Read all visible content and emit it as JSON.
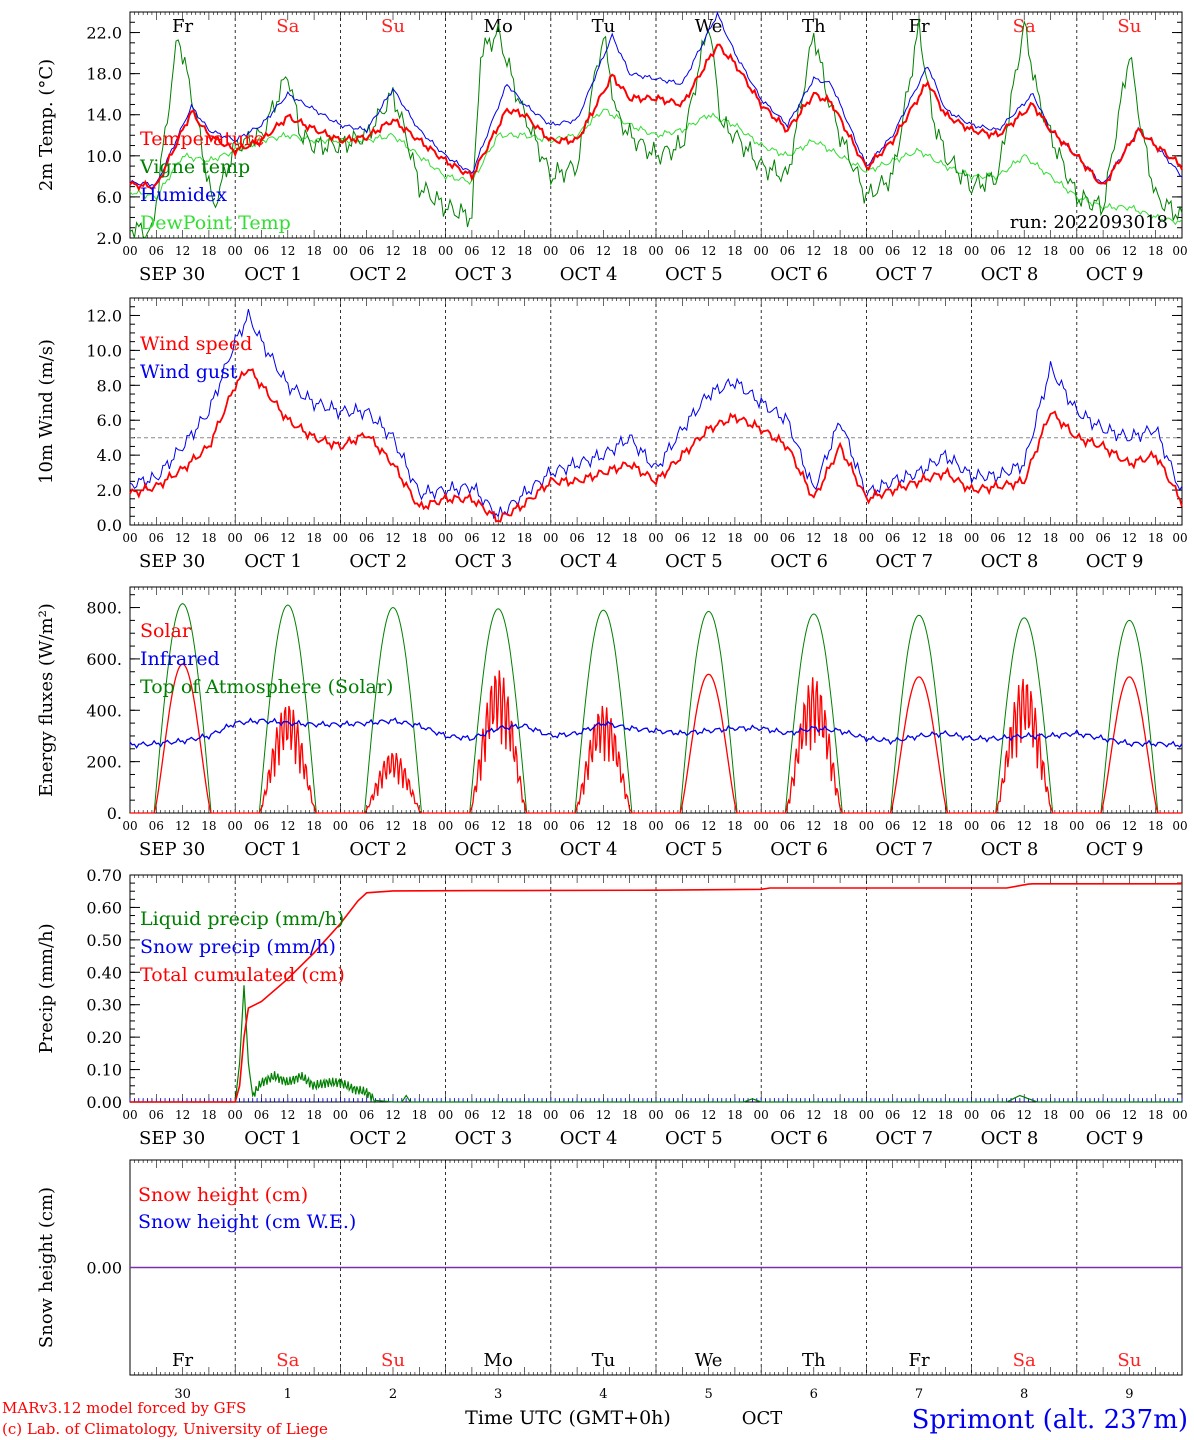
{
  "colors": {
    "red": "#ff0000",
    "darkgreen": "#008000",
    "lightgreen": "#33dd33",
    "blue": "#0000ee",
    "purple": "#7b2fa8",
    "black": "#000000",
    "weekend": "#ff2020"
  },
  "hour_ticks": [
    "00",
    "06",
    "12",
    "18"
  ],
  "end_tick": "00",
  "date_labels": [
    "SEP 30",
    "OCT  1",
    "OCT  2",
    "OCT  3",
    "OCT  4",
    "OCT  5",
    "OCT  6",
    "OCT  7",
    "OCT  8",
    "OCT  9"
  ],
  "weekdays": [
    "Fr",
    "Sa",
    "Su",
    "Mo",
    "Tu",
    "We",
    "Th",
    "Fr",
    "Sa",
    "Su"
  ],
  "weekend_flags": [
    false,
    true,
    true,
    false,
    false,
    false,
    false,
    false,
    true,
    true
  ],
  "day_numbers": [
    "30",
    "1",
    "2",
    "3",
    "4",
    "5",
    "6",
    "7",
    "8",
    "9"
  ],
  "footer": {
    "credit_line1": "MARv3.12 model forced by GFS",
    "credit_line2": "(c) Lab. of Climatology, University of Liege",
    "time_label": "Time UTC (GMT+0h)",
    "month_label": "OCT",
    "station": "Sprimont (alt. 237m)"
  },
  "chart_data": [
    {
      "type": "line",
      "ylabel": "2m Temp. (°C)",
      "ylim": [
        2,
        24
      ],
      "yticks": [
        "2.0",
        "6.0",
        "10.0",
        "14.0",
        "18.0",
        "22.0"
      ],
      "ytick_values": [
        2,
        6,
        10,
        14,
        18,
        22
      ],
      "annotation": "run: 2022093018",
      "x_unit": "hours since 2022-09-30 00 UTC",
      "series": [
        {
          "name": "Temperature",
          "color": "red",
          "x": [
            0,
            6,
            14,
            18,
            24,
            30,
            36,
            42,
            48,
            54,
            60,
            66,
            72,
            78,
            86,
            90,
            96,
            102,
            110,
            114,
            120,
            126,
            134,
            138,
            144,
            150,
            156,
            160,
            168,
            174,
            182,
            186,
            192,
            198,
            206,
            210,
            216,
            222,
            230,
            234,
            240
          ],
          "values": [
            7.2,
            7,
            14.3,
            12,
            10.5,
            11.5,
            13.8,
            12.6,
            11.5,
            11.8,
            13.5,
            11.5,
            9.5,
            8,
            14.5,
            14,
            11.5,
            11.5,
            17.8,
            15.6,
            15.6,
            15,
            20.8,
            19,
            15,
            12.5,
            16,
            15.2,
            8.8,
            11.5,
            17.2,
            14,
            12.5,
            12,
            15,
            12.5,
            10,
            7,
            12.5,
            11,
            9
          ]
        },
        {
          "name": "Vigne temp",
          "color": "darkgreen",
          "x": [
            0,
            5,
            11,
            15,
            19,
            24,
            30,
            36,
            39,
            42,
            48,
            54,
            60,
            63,
            66,
            72,
            78,
            80,
            84,
            89,
            96,
            102,
            108,
            111,
            114,
            120,
            126,
            132,
            135,
            138,
            144,
            150,
            156,
            159,
            162,
            168,
            174,
            180,
            183,
            186,
            192,
            198,
            204,
            207,
            210,
            216,
            222,
            228,
            231,
            234,
            240
          ],
          "values": [
            3,
            2.5,
            21.8,
            14,
            5,
            11,
            12,
            18,
            12,
            11,
            11,
            12,
            16,
            12,
            7,
            5,
            4,
            20,
            22,
            15,
            8,
            9,
            21.7,
            14,
            12,
            10,
            11,
            23,
            13,
            12,
            9,
            8,
            22,
            16,
            12,
            6,
            8,
            22.5,
            14,
            10,
            7,
            8,
            22.7,
            16,
            12,
            6,
            5,
            20,
            12,
            6,
            4
          ]
        },
        {
          "name": "Humidex",
          "color": "blue",
          "x": [
            0,
            6,
            14,
            18,
            24,
            30,
            36,
            42,
            48,
            54,
            60,
            66,
            72,
            78,
            86,
            90,
            96,
            102,
            110,
            114,
            120,
            126,
            134,
            138,
            144,
            150,
            156,
            160,
            168,
            174,
            182,
            186,
            192,
            198,
            206,
            210,
            216,
            222,
            230,
            234,
            240
          ],
          "values": [
            7.4,
            7.2,
            14.8,
            12.5,
            11.5,
            13,
            16,
            14.5,
            13,
            12.5,
            16.5,
            12.5,
            10,
            8.3,
            17,
            15,
            13,
            13.5,
            21.7,
            18,
            17.5,
            17,
            23.8,
            20,
            15.5,
            13,
            17.5,
            17,
            9,
            12,
            18.8,
            14.5,
            13,
            12.5,
            16,
            12.5,
            10,
            7.2,
            12.5,
            11,
            8
          ]
        },
        {
          "name": "DewPoint Temp",
          "color": "lightgreen",
          "x": [
            0,
            6,
            12,
            18,
            24,
            30,
            36,
            42,
            48,
            54,
            60,
            66,
            72,
            78,
            84,
            90,
            96,
            102,
            108,
            114,
            120,
            126,
            132,
            138,
            144,
            150,
            156,
            162,
            168,
            174,
            180,
            186,
            192,
            198,
            204,
            210,
            216,
            222,
            228,
            234,
            240
          ],
          "values": [
            6.5,
            6,
            10,
            9.5,
            10.5,
            11.5,
            12,
            11.5,
            11.5,
            11.5,
            12,
            10,
            8,
            7.5,
            12,
            12,
            11.5,
            12,
            14.5,
            13,
            12,
            12.5,
            14,
            13,
            11,
            10,
            11.5,
            10,
            8.5,
            9.5,
            10.5,
            9,
            8,
            8,
            10,
            8,
            6,
            5,
            5,
            4,
            3.5
          ]
        }
      ]
    },
    {
      "type": "line",
      "ylabel": "10m Wind (m/s)",
      "ylim": [
        0,
        13
      ],
      "yticks": [
        "0.0",
        "2.0",
        "4.0",
        "6.0",
        "8.0",
        "10.0",
        "12.0"
      ],
      "ytick_values": [
        0,
        2,
        4,
        6,
        8,
        10,
        12
      ],
      "reference_line": 5,
      "series": [
        {
          "name": "Wind speed",
          "color": "red",
          "x": [
            0,
            6,
            12,
            18,
            24,
            27,
            30,
            36,
            42,
            48,
            54,
            60,
            66,
            72,
            78,
            84,
            90,
            96,
            102,
            108,
            114,
            120,
            126,
            132,
            138,
            144,
            150,
            156,
            162,
            168,
            174,
            180,
            186,
            192,
            198,
            204,
            210,
            216,
            222,
            228,
            234,
            240
          ],
          "values": [
            1.8,
            2.2,
            3.2,
            4.5,
            8,
            9,
            8,
            6,
            5,
            4.5,
            5.2,
            3.5,
            1,
            1.5,
            1.5,
            0.3,
            1.2,
            2.5,
            2.5,
            3,
            3.5,
            2.5,
            4,
            5.5,
            6.2,
            5.5,
            4.5,
            1.5,
            4.5,
            1.5,
            2,
            2.5,
            3,
            2,
            2.2,
            2.5,
            6.5,
            5,
            4.5,
            3.5,
            4,
            1.3
          ]
        },
        {
          "name": "Wind gust",
          "color": "blue",
          "x": [
            0,
            6,
            12,
            18,
            24,
            27,
            30,
            36,
            42,
            48,
            54,
            60,
            66,
            72,
            78,
            84,
            90,
            96,
            102,
            108,
            114,
            120,
            126,
            132,
            138,
            144,
            150,
            156,
            162,
            168,
            174,
            180,
            186,
            192,
            198,
            204,
            210,
            216,
            222,
            228,
            234,
            240
          ],
          "values": [
            2.3,
            2.7,
            4.5,
            6.5,
            10.5,
            12,
            10.5,
            8,
            7,
            6.5,
            6.5,
            5,
            1.8,
            2,
            2.2,
            0.5,
            1.8,
            3,
            3.5,
            4,
            5,
            3.2,
            5.5,
            7.5,
            8.2,
            7,
            6,
            2,
            6,
            1.8,
            2.5,
            3,
            4,
            2.8,
            2.8,
            3.5,
            9,
            6.5,
            5.5,
            5,
            5.5,
            1.8
          ]
        }
      ]
    },
    {
      "type": "line",
      "ylabel": "Energy fluxes (W/m²)",
      "ylim": [
        0,
        880
      ],
      "yticks": [
        "0.",
        "200.",
        "400.",
        "600.",
        "800."
      ],
      "ytick_values": [
        0,
        200,
        400,
        600,
        800
      ],
      "toa_peaks": [
        815,
        810,
        800,
        795,
        790,
        785,
        775,
        770,
        760,
        750
      ],
      "solar_peaks": [
        580,
        430,
        240,
        560,
        420,
        540,
        530,
        530,
        530,
        530
      ],
      "series": [
        {
          "name": "Solar",
          "color": "red"
        },
        {
          "name": "Infrared",
          "color": "blue",
          "x": [
            0,
            6,
            12,
            18,
            24,
            30,
            36,
            42,
            48,
            54,
            60,
            66,
            72,
            78,
            84,
            90,
            96,
            102,
            108,
            114,
            120,
            126,
            132,
            138,
            144,
            150,
            156,
            162,
            168,
            174,
            180,
            186,
            192,
            198,
            204,
            210,
            216,
            222,
            228,
            234,
            240
          ],
          "values": [
            265,
            270,
            280,
            300,
            350,
            360,
            350,
            345,
            345,
            350,
            360,
            340,
            300,
            290,
            330,
            340,
            300,
            310,
            350,
            330,
            320,
            310,
            320,
            330,
            330,
            310,
            330,
            320,
            290,
            280,
            300,
            310,
            290,
            290,
            300,
            300,
            310,
            290,
            270,
            270,
            265
          ]
        },
        {
          "name": "Top of Atmosphere (Solar)",
          "color": "darkgreen"
        }
      ]
    },
    {
      "type": "line",
      "ylabel": "Precip (mm/h)",
      "ylim": [
        0,
        0.7
      ],
      "yticks": [
        "0.00",
        "0.10",
        "0.20",
        "0.30",
        "0.40",
        "0.50",
        "0.60",
        "0.70"
      ],
      "ytick_values": [
        0,
        0.1,
        0.2,
        0.3,
        0.4,
        0.5,
        0.6,
        0.7
      ],
      "series": [
        {
          "name": "Liquid precip (mm/h)",
          "color": "darkgreen",
          "x": [
            0,
            24,
            25,
            26,
            27,
            28,
            30,
            33,
            36,
            39,
            42,
            45,
            48,
            51,
            54,
            56,
            60,
            62,
            63,
            64,
            100,
            140,
            142,
            144,
            200,
            203,
            205,
            207,
            240
          ],
          "values": [
            0,
            0,
            0.12,
            0.36,
            0.12,
            0.02,
            0.06,
            0.08,
            0.06,
            0.08,
            0.05,
            0.06,
            0.06,
            0.04,
            0.03,
            0.005,
            0,
            0,
            0.02,
            0,
            0,
            0,
            0.01,
            0,
            0,
            0.02,
            0.01,
            0,
            0
          ]
        },
        {
          "name": "Snow precip (mm/h)",
          "color": "blue",
          "x": [
            0,
            240
          ],
          "values": [
            0,
            0
          ]
        },
        {
          "name": "Total cumulated (cm)",
          "color": "red",
          "x": [
            0,
            24,
            25,
            26,
            27,
            30,
            36,
            42,
            48,
            52,
            54,
            60,
            80,
            120,
            144,
            146,
            200,
            205,
            206,
            240
          ],
          "values": [
            0,
            0,
            0.05,
            0.2,
            0.29,
            0.31,
            0.38,
            0.46,
            0.55,
            0.62,
            0.645,
            0.651,
            0.652,
            0.653,
            0.656,
            0.66,
            0.66,
            0.672,
            0.673,
            0.673
          ]
        }
      ]
    },
    {
      "type": "line",
      "ylabel": "Snow height (cm)",
      "ylim": [
        -1,
        1
      ],
      "yticks": [
        "0.00"
      ],
      "ytick_values": [
        0
      ],
      "series": [
        {
          "name": "Snow height (cm)",
          "color": "red",
          "x": [
            0,
            240
          ],
          "values": [
            0,
            0
          ]
        },
        {
          "name": "Snow height (cm W.E.)",
          "color": "blue",
          "x": [
            0,
            240
          ],
          "values": [
            0,
            0
          ]
        }
      ]
    }
  ]
}
